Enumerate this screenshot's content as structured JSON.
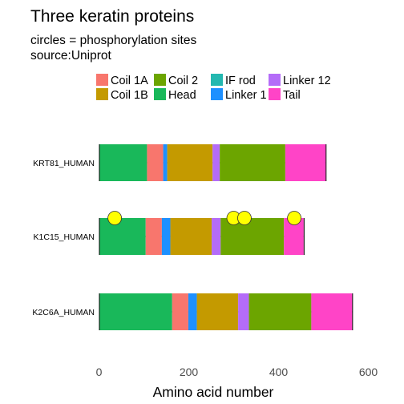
{
  "chart_data": {
    "type": "bar",
    "title": "Three keratin proteins",
    "subtitle_lines": [
      "circles = phosphorylation sites",
      "source:Uniprot"
    ],
    "xlabel": "Amino acid number",
    "ylabel": "",
    "xlim": [
      0,
      600
    ],
    "x_ticks": [
      0,
      200,
      400,
      600
    ],
    "grid": false,
    "legend_position": "top",
    "legend": [
      {
        "name": "Coil 1A",
        "color": "#F8766D"
      },
      {
        "name": "Coil 1B",
        "color": "#C49A00"
      },
      {
        "name": "Coil 2",
        "color": "#6CA500"
      },
      {
        "name": "Head",
        "color": "#19B85A"
      },
      {
        "name": "IF rod",
        "color": "#24B8B0"
      },
      {
        "name": "Linker 1",
        "color": "#1E90FF"
      },
      {
        "name": "Linker 12",
        "color": "#B46CF8"
      },
      {
        "name": "Tail",
        "color": "#FF44C7"
      }
    ],
    "proteins": [
      {
        "label": "K2C6A_HUMAN",
        "length": 564,
        "segments": [
          {
            "type": "Head",
            "start": 1,
            "end": 163
          },
          {
            "type": "Coil 1A",
            "start": 164,
            "end": 199
          },
          {
            "type": "Linker 1",
            "start": 200,
            "end": 218
          },
          {
            "type": "Coil 1B",
            "start": 219,
            "end": 310
          },
          {
            "type": "Linker 12",
            "start": 311,
            "end": 334
          },
          {
            "type": "Coil 2",
            "start": 335,
            "end": 473
          },
          {
            "type": "Tail",
            "start": 474,
            "end": 564
          }
        ],
        "phospho_sites": []
      },
      {
        "label": "K1C15_HUMAN",
        "length": 456,
        "segments": [
          {
            "type": "Head",
            "start": 1,
            "end": 104
          },
          {
            "type": "Coil 1A",
            "start": 105,
            "end": 140
          },
          {
            "type": "Linker 1",
            "start": 141,
            "end": 159
          },
          {
            "type": "Coil 1B",
            "start": 160,
            "end": 251
          },
          {
            "type": "Linker 12",
            "start": 252,
            "end": 271
          },
          {
            "type": "Coil 2",
            "start": 272,
            "end": 412
          },
          {
            "type": "Tail",
            "start": 413,
            "end": 456
          }
        ],
        "phospho_sites": [
          35,
          300,
          324,
          435
        ]
      },
      {
        "label": "KRT81_HUMAN",
        "length": 505,
        "segments": [
          {
            "type": "Head",
            "start": 1,
            "end": 107
          },
          {
            "type": "Coil 1A",
            "start": 108,
            "end": 143
          },
          {
            "type": "Linker 1",
            "start": 144,
            "end": 152
          },
          {
            "type": "Coil 1B",
            "start": 153,
            "end": 253
          },
          {
            "type": "Linker 12",
            "start": 254,
            "end": 269
          },
          {
            "type": "Coil 2",
            "start": 270,
            "end": 415
          },
          {
            "type": "Tail",
            "start": 416,
            "end": 505
          }
        ],
        "phospho_sites": []
      }
    ]
  }
}
